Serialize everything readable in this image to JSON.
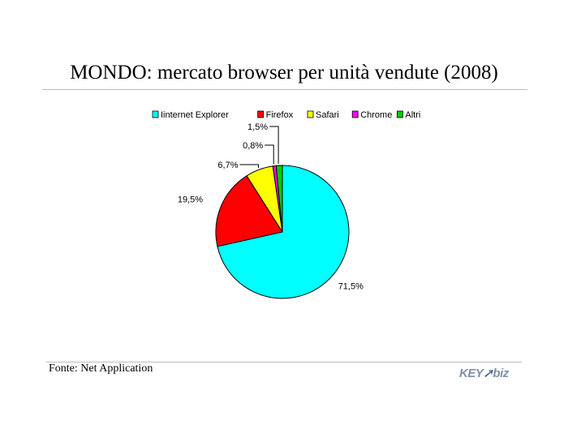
{
  "title": "MONDO: mercato browser per unità vendute (2008)",
  "source": "Fonte: Net Application",
  "logo": {
    "text_left": "KEY",
    "text_right": "biz",
    "icon": "swoosh-arrow-icon"
  },
  "colors": {
    "Iinternet Explorer": "#00ffff",
    "Firefox": "#ff0000",
    "Safari": "#ffff00",
    "Chrome": "#ff00ff",
    "Altri": "#00cc00"
  },
  "chart_data": {
    "type": "pie",
    "title": "",
    "legend_position": "top",
    "slices": [
      {
        "name": "Iinternet Explorer",
        "value": 71.5,
        "label": "71,5%"
      },
      {
        "name": "Firefox",
        "value": 19.5,
        "label": "19,5%"
      },
      {
        "name": "Safari",
        "value": 6.7,
        "label": "6,7%"
      },
      {
        "name": "Chrome",
        "value": 0.8,
        "label": "0,8%"
      },
      {
        "name": "Altri",
        "value": 1.5,
        "label": "1,5%"
      }
    ]
  }
}
